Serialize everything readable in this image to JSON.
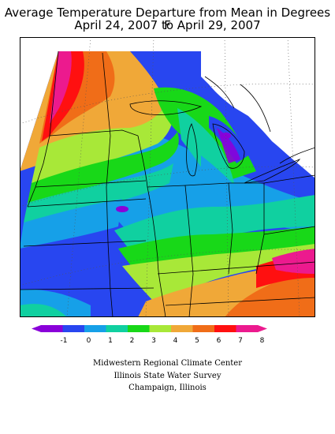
{
  "title_line1": "Average Temperature Departure from Mean in Degrees F",
  "title_line2": "April 24, 2007 to April 29, 2007",
  "legend": {
    "ticks": [
      "-1",
      "0",
      "1",
      "2",
      "3",
      "4",
      "5",
      "6",
      "7",
      "8"
    ],
    "colors": [
      "#8a00d9",
      "#2846f0",
      "#16a0e8",
      "#10d0a0",
      "#18d818",
      "#a8e838",
      "#f0a838",
      "#f06d18",
      "#ff1010",
      "#ec1a8e"
    ]
  },
  "credits": {
    "line1": "Midwestern Regional Climate Center",
    "line2": "Illinois State Water Survey",
    "line3": "Champaign, Illinois"
  }
}
